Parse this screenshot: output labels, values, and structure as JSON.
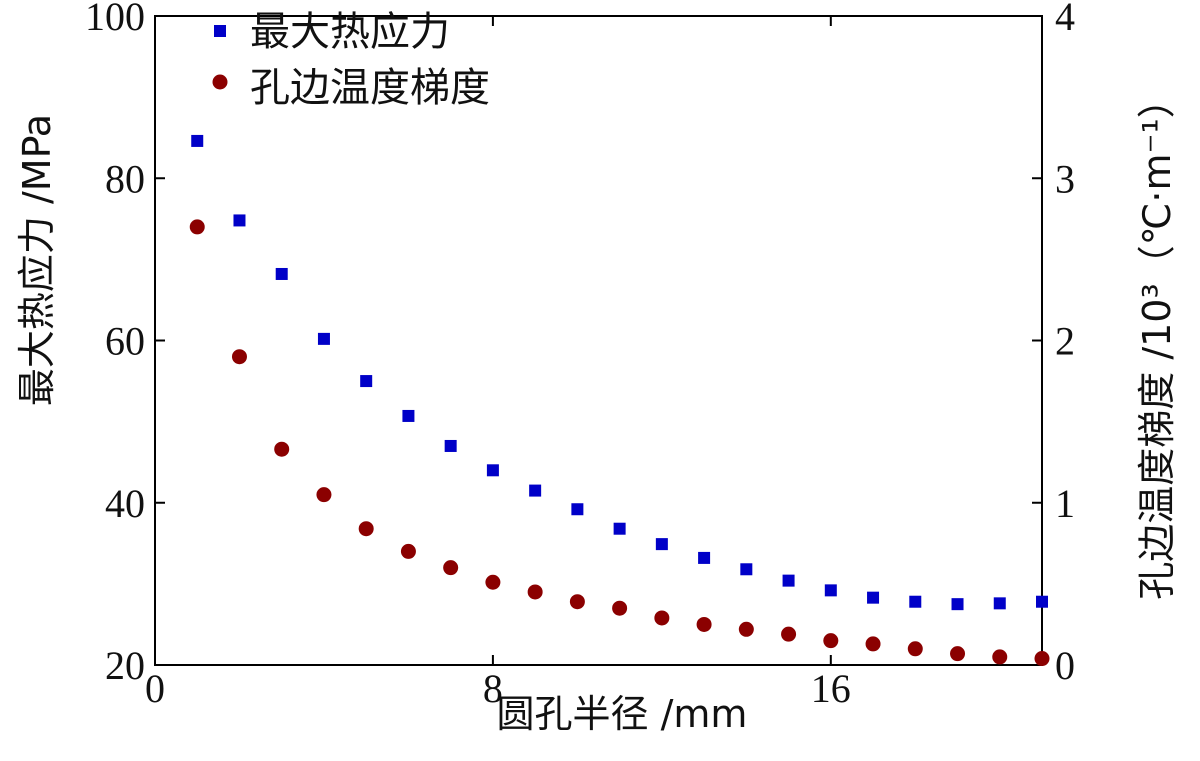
{
  "chart_data": {
    "type": "scatter",
    "xlabel": "圆孔半径 /mm",
    "ylabel_left": "最大热应力 /MPa",
    "ylabel_right": "孔边温度梯度 /10³（℃·m⁻¹）",
    "xlim": [
      0,
      21
    ],
    "ylim_left": [
      20,
      100
    ],
    "ylim_right": [
      0,
      4
    ],
    "x_ticks": [
      0,
      8,
      16
    ],
    "x_tick_labels": [
      "0",
      "8",
      "16"
    ],
    "y_ticks_left": [
      20,
      40,
      60,
      80,
      100
    ],
    "y_tick_labels_left": [
      "20",
      "40",
      "60",
      "80",
      "100"
    ],
    "y_ticks_right": [
      0,
      1,
      2,
      3,
      4
    ],
    "y_tick_labels_right": [
      "0",
      "1",
      "2",
      "3",
      "4"
    ],
    "legend_position": "top-left",
    "series": [
      {
        "name": "最大热应力",
        "axis": "left",
        "marker": "square",
        "color": "#0000c8",
        "x": [
          1,
          2,
          3,
          4,
          5,
          6,
          7,
          8,
          9,
          10,
          11,
          12,
          13,
          14,
          15,
          16,
          17,
          18,
          19,
          20,
          21
        ],
        "y": [
          84.6,
          74.8,
          68.2,
          60.2,
          55.0,
          50.7,
          47.0,
          44.0,
          41.5,
          39.2,
          36.8,
          34.9,
          33.2,
          31.8,
          30.4,
          29.2,
          28.3,
          27.8,
          27.5,
          27.6,
          27.8
        ]
      },
      {
        "name": "孔边温度梯度",
        "axis": "right",
        "marker": "circle",
        "color": "#8b0000",
        "x": [
          1,
          2,
          3,
          4,
          5,
          6,
          7,
          8,
          9,
          10,
          11,
          12,
          13,
          14,
          15,
          16,
          17,
          18,
          19,
          20,
          21
        ],
        "y": [
          2.7,
          1.9,
          1.33,
          1.05,
          0.84,
          0.7,
          0.6,
          0.51,
          0.45,
          0.39,
          0.35,
          0.29,
          0.25,
          0.22,
          0.19,
          0.15,
          0.13,
          0.1,
          0.07,
          0.05,
          0.04
        ]
      }
    ]
  }
}
